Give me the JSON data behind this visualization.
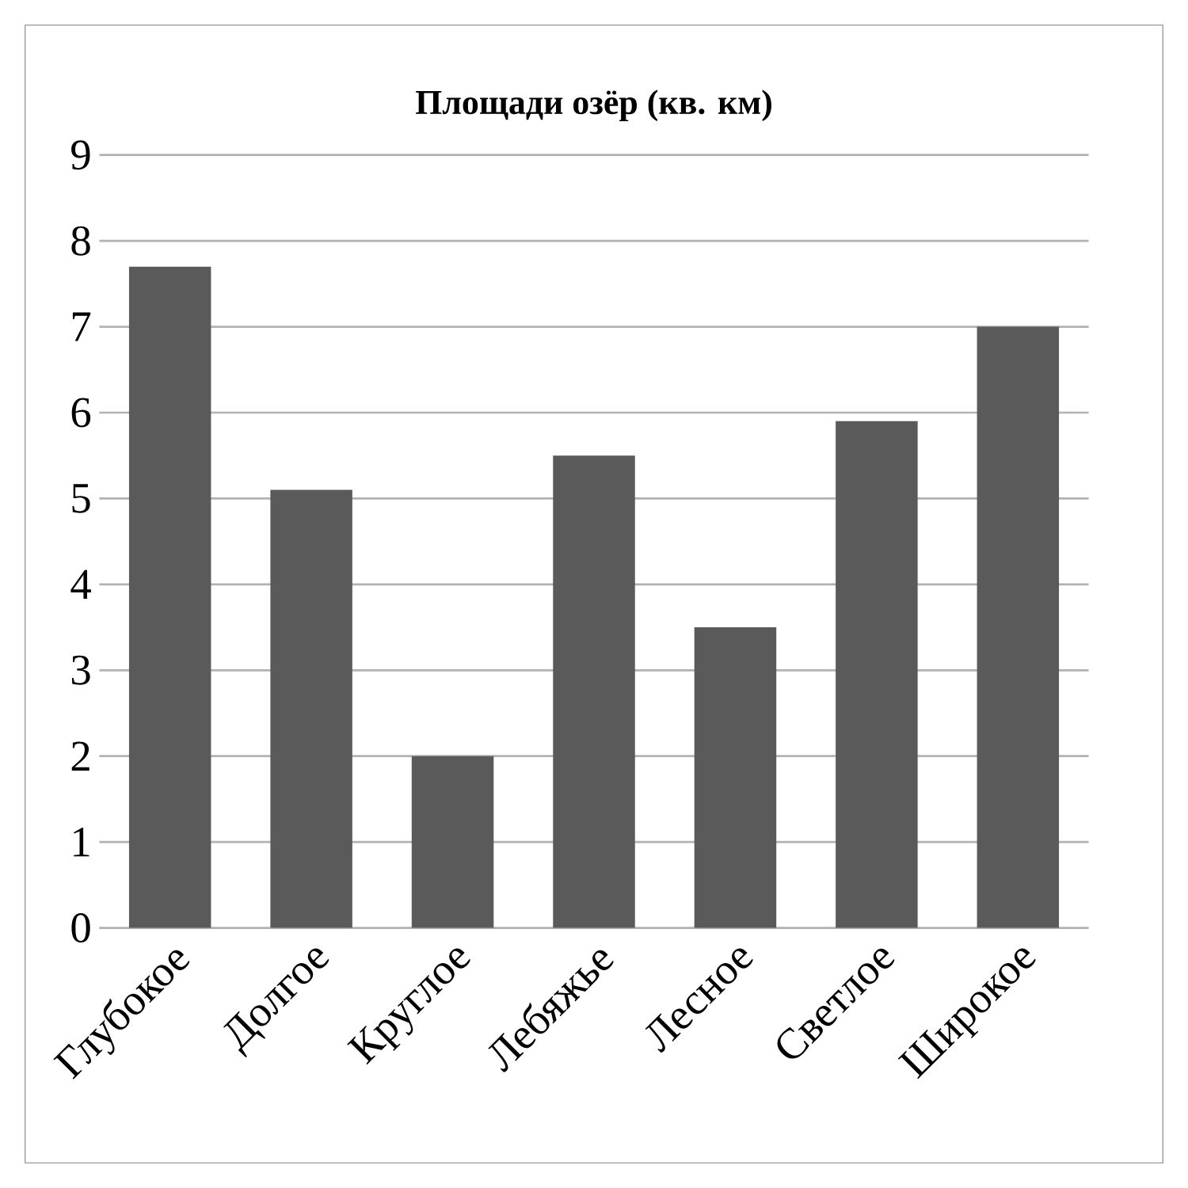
{
  "chart_data": {
    "type": "bar",
    "title": "Площади озёр (кв. км)",
    "categories": [
      "Глубокое",
      "Долгое",
      "Круглое",
      "Лебяжье",
      "Лесное",
      "Светлое",
      "Широкое"
    ],
    "values": [
      7.7,
      5.1,
      2.0,
      5.5,
      3.5,
      5.9,
      7.0
    ],
    "color": "#5a5a5a",
    "ylim": [
      0,
      9
    ],
    "yticks": [
      0,
      1,
      2,
      3,
      4,
      5,
      6,
      7,
      8,
      9
    ],
    "grid": "y"
  }
}
